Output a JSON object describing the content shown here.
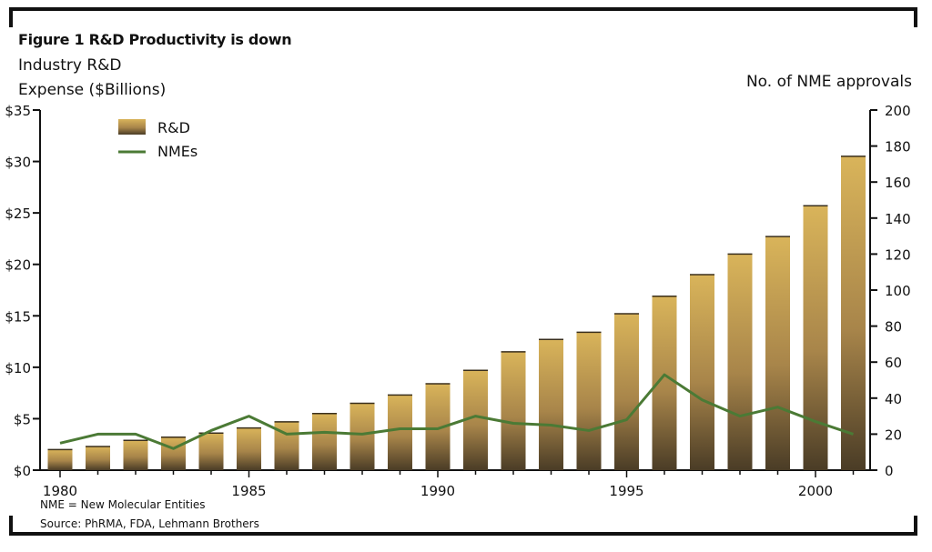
{
  "figure": {
    "title": "Figure 1  R&D Productivity is down",
    "left_axis_label_line1": "Industry R&D",
    "left_axis_label_line2": "Expense ($Billions)",
    "right_axis_label": "No. of NME approvals",
    "note": "NME = New Molecular Entities",
    "source": "Source: PhRMA, FDA, Lehmann Brothers"
  },
  "colors": {
    "bar_top": "#d9b45a",
    "bar_bottom": "#4a3c26",
    "line": "#4b7a35",
    "frame": "#111111"
  },
  "chart_data": {
    "type": "bar",
    "title": "Figure 1  R&D Productivity is down",
    "xlabel": "",
    "ylabel": "Industry R&D Expense ($Billions)",
    "y2label": "No. of NME approvals",
    "x": [
      1980,
      1981,
      1982,
      1983,
      1984,
      1985,
      1986,
      1987,
      1988,
      1989,
      1990,
      1991,
      1992,
      1993,
      1994,
      1995,
      1996,
      1997,
      1998,
      1999,
      2000,
      2001
    ],
    "x_tick_labels": [
      "1980",
      "1985",
      "1990",
      "1995",
      "2000"
    ],
    "ylim": [
      0,
      35
    ],
    "y_tick_labels": [
      "$0",
      "$5",
      "$10",
      "$15",
      "$20",
      "$25",
      "$30",
      "$35"
    ],
    "y2lim": [
      0,
      200
    ],
    "y2_tick_labels": [
      "0",
      "20",
      "40",
      "60",
      "80",
      "100",
      "120",
      "140",
      "160",
      "180",
      "200"
    ],
    "legend_position": "top-left",
    "grid": false,
    "series": [
      {
        "name": "R&D",
        "type": "bar",
        "axis": "left",
        "values": [
          2.0,
          2.3,
          2.9,
          3.2,
          3.6,
          4.1,
          4.7,
          5.5,
          6.5,
          7.3,
          8.4,
          9.7,
          11.5,
          12.7,
          13.4,
          15.2,
          16.9,
          19.0,
          21.0,
          22.7,
          25.7,
          30.5
        ]
      },
      {
        "name": "NMEs",
        "type": "line",
        "axis": "right",
        "values": [
          15,
          20,
          20,
          12,
          22,
          30,
          20,
          21,
          20,
          23,
          23,
          30,
          26,
          25,
          22,
          28,
          53,
          39,
          30,
          35,
          27,
          20
        ]
      }
    ]
  }
}
